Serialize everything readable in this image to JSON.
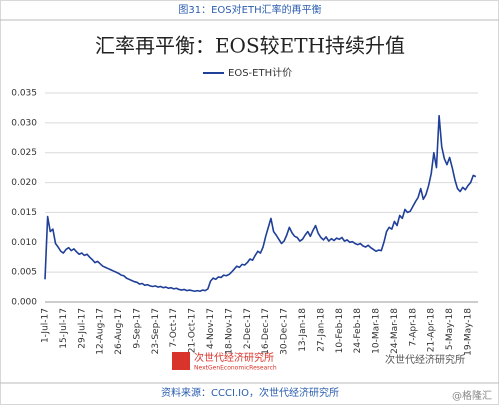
{
  "caption": "图31：EOS对ETH汇率的再平衡",
  "chart_data": {
    "type": "line",
    "title": "汇率再平衡：EOS较ETH持续升值",
    "categories": [
      "1-Jul-17",
      null,
      null,
      null,
      null,
      null,
      null,
      "15-Jul-17",
      null,
      null,
      null,
      null,
      null,
      null,
      "29-Jul-17",
      null,
      null,
      null,
      null,
      null,
      null,
      "12-Aug-17",
      null,
      null,
      null,
      null,
      null,
      null,
      "26-Aug-17",
      null,
      null,
      null,
      null,
      null,
      null,
      "9-Sep-17",
      null,
      null,
      null,
      null,
      null,
      null,
      "23-Sep-17",
      null,
      null,
      null,
      null,
      null,
      null,
      "7-Oct-17",
      null,
      null,
      null,
      null,
      null,
      null,
      "21-Oct-17",
      null,
      null,
      null,
      null,
      null,
      null,
      "4-Nov-17",
      null,
      null,
      null,
      null,
      null,
      null,
      "18-Nov-17",
      null,
      null,
      null,
      null,
      null,
      null,
      "2-Dec-17",
      null,
      null,
      null,
      null,
      null,
      null,
      "16-Dec-17",
      null,
      null,
      null,
      null,
      null,
      null,
      "30-Dec-17",
      null,
      null,
      null,
      null,
      null,
      null,
      "13-Jan-18",
      null,
      null,
      null,
      null,
      null,
      null,
      "27-Jan-18",
      null,
      null,
      null,
      null,
      null,
      null,
      "10-Feb-18",
      null,
      null,
      null,
      null,
      null,
      null,
      "24-Feb-18",
      null,
      null,
      null,
      null,
      null,
      null,
      "10-Mar-18",
      null,
      null,
      null,
      null,
      null,
      null,
      "24-Mar-18",
      null,
      null,
      null,
      null,
      null,
      null,
      "7-Apr-18",
      null,
      null,
      null,
      null,
      null,
      null,
      "21-Apr-18",
      null,
      null,
      null,
      null,
      null,
      null,
      "5-May-18",
      null,
      null,
      null,
      null,
      null,
      null,
      "19-May-18",
      null,
      null,
      null
    ],
    "series": [
      {
        "name": "EOS-ETH计价",
        "color": "#1f3f99",
        "values": [
          0.0038,
          0.0143,
          0.0118,
          0.0122,
          0.0098,
          0.0092,
          0.0085,
          0.0082,
          0.0088,
          0.0091,
          0.0086,
          0.0089,
          0.0084,
          0.008,
          0.0082,
          0.0078,
          0.008,
          0.0075,
          0.0071,
          0.0066,
          0.0068,
          0.0064,
          0.006,
          0.0058,
          0.0056,
          0.0054,
          0.0052,
          0.005,
          0.0048,
          0.0045,
          0.0044,
          0.004,
          0.0038,
          0.0036,
          0.0034,
          0.0033,
          0.003,
          0.0031,
          0.0028,
          0.0029,
          0.0027,
          0.0026,
          0.0027,
          0.0025,
          0.0026,
          0.0024,
          0.0025,
          0.0023,
          0.0024,
          0.0022,
          0.0023,
          0.0021,
          0.002,
          0.0021,
          0.0019,
          0.002,
          0.0019,
          0.0018,
          0.0019,
          0.0018,
          0.002,
          0.0019,
          0.0022,
          0.0035,
          0.004,
          0.0038,
          0.0042,
          0.0041,
          0.0045,
          0.0044,
          0.0046,
          0.005,
          0.0055,
          0.006,
          0.0058,
          0.0063,
          0.0062,
          0.0066,
          0.0072,
          0.007,
          0.0078,
          0.0085,
          0.0082,
          0.0092,
          0.011,
          0.0125,
          0.014,
          0.0118,
          0.0112,
          0.0105,
          0.0098,
          0.0102,
          0.0112,
          0.0125,
          0.0116,
          0.011,
          0.0108,
          0.0102,
          0.0105,
          0.0112,
          0.0118,
          0.011,
          0.012,
          0.0128,
          0.0115,
          0.0108,
          0.0104,
          0.0109,
          0.0102,
          0.0106,
          0.0103,
          0.0107,
          0.0105,
          0.0108,
          0.0102,
          0.0104,
          0.01,
          0.0101,
          0.0098,
          0.0096,
          0.0098,
          0.0094,
          0.0092,
          0.0095,
          0.0091,
          0.0088,
          0.0085,
          0.0087,
          0.0086,
          0.01,
          0.0118,
          0.0125,
          0.0122,
          0.0135,
          0.0128,
          0.0145,
          0.014,
          0.0155,
          0.015,
          0.0152,
          0.016,
          0.0168,
          0.0175,
          0.019,
          0.0172,
          0.018,
          0.0195,
          0.0215,
          0.025,
          0.0225,
          0.0312,
          0.026,
          0.024,
          0.023,
          0.0242,
          0.0225,
          0.0205,
          0.019,
          0.0185,
          0.0192,
          0.0188,
          0.0195,
          0.02,
          0.0212,
          0.021
        ]
      }
    ],
    "ylim": [
      0,
      0.035
    ],
    "yticks": [
      {
        "value": 0,
        "label": "0.000"
      },
      {
        "value": 0.005,
        "label": "0.005"
      },
      {
        "value": 0.01,
        "label": "0.010"
      },
      {
        "value": 0.015,
        "label": "0.015"
      },
      {
        "value": 0.02,
        "label": "0.020"
      },
      {
        "value": 0.025,
        "label": "0.025"
      },
      {
        "value": 0.03,
        "label": "0.030"
      },
      {
        "value": 0.035,
        "label": "0.035"
      }
    ],
    "grid": true,
    "legend": "top"
  },
  "watermark": {
    "name": "次世代经济研究所",
    "name_en": "NextGenEconomicResearch"
  },
  "source": "资料来源：CCCI.IO，次世代经济研究所",
  "wechat": "次世代经济研究所",
  "credit": "@格隆汇"
}
